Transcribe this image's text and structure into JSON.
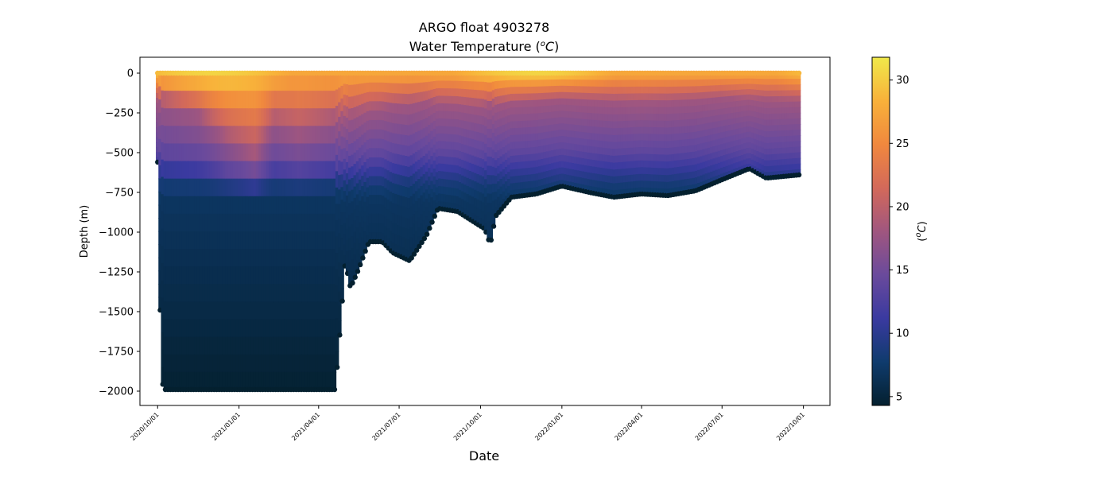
{
  "chart_data": {
    "type": "scatter",
    "title": "ARGO float 4903278",
    "subtitle_prefix": "Water Temperature (",
    "subtitle_unit_sup": "o",
    "subtitle_unit": "C",
    "subtitle_suffix": ")",
    "xlabel": "Date",
    "ylabel": "Depth (m)",
    "colorbar_label_prefix": "(",
    "colorbar_label_sup": "o",
    "colorbar_label_unit": "C",
    "colorbar_label_suffix": ")",
    "colormap": "thermal",
    "colormap_stops": [
      "#04202f",
      "#0f3b6d",
      "#3a3aa0",
      "#6a4a9c",
      "#a0567f",
      "#d3695a",
      "#f0883e",
      "#f8b13a",
      "#f0e94a"
    ],
    "clim": [
      4.3,
      31.8
    ],
    "colorbar_ticks": [
      5,
      10,
      15,
      20,
      25,
      30
    ],
    "xlim": [
      "2020-09-11",
      "2022-10-31"
    ],
    "ylim": [
      -2090,
      100
    ],
    "x_tick_labels": [
      "2020/10/01",
      "2021/01/01",
      "2021/04/01",
      "2021/07/01",
      "2021/10/01",
      "2022/01/01",
      "2022/04/01",
      "2022/07/01",
      "2022/10/01"
    ],
    "x_tick_dates": [
      "2020-10-01",
      "2021-01-01",
      "2021-04-01",
      "2021-07-01",
      "2021-10-01",
      "2022-01-01",
      "2022-04-01",
      "2022-07-01",
      "2022-10-01"
    ],
    "y_ticks": [
      0,
      -250,
      -500,
      -750,
      -1000,
      -1250,
      -1500,
      -1750,
      -2000
    ],
    "y_tick_labels": [
      "0",
      "−250",
      "−500",
      "−750",
      "−1000",
      "−1250",
      "−1500",
      "−1750",
      "−2000"
    ],
    "grid": false,
    "profile_start": "2020-10-01",
    "profile_end": "2022-09-26",
    "profile_interval_days": 2.9,
    "max_depth_anchors": [
      {
        "date": "2020-10-01",
        "depth": -560
      },
      {
        "date": "2020-10-02",
        "depth": -1500
      },
      {
        "date": "2020-10-04",
        "depth": -1490
      },
      {
        "date": "2020-10-07",
        "depth": -1990
      },
      {
        "date": "2021-04-20",
        "depth": -1990
      },
      {
        "date": "2021-04-26",
        "depth": -1570
      },
      {
        "date": "2021-05-01",
        "depth": -1190
      },
      {
        "date": "2021-05-07",
        "depth": -1350
      },
      {
        "date": "2021-05-15",
        "depth": -1250
      },
      {
        "date": "2021-05-28",
        "depth": -1060
      },
      {
        "date": "2021-06-12",
        "depth": -1060
      },
      {
        "date": "2021-06-24",
        "depth": -1130
      },
      {
        "date": "2021-07-13",
        "depth": -1180
      },
      {
        "date": "2021-08-01",
        "depth": -1020
      },
      {
        "date": "2021-08-14",
        "depth": -850
      },
      {
        "date": "2021-09-05",
        "depth": -870
      },
      {
        "date": "2021-10-06",
        "depth": -980
      },
      {
        "date": "2021-10-12",
        "depth": -1080
      },
      {
        "date": "2021-10-18",
        "depth": -900
      },
      {
        "date": "2021-11-05",
        "depth": -780
      },
      {
        "date": "2021-12-03",
        "depth": -760
      },
      {
        "date": "2022-01-01",
        "depth": -710
      },
      {
        "date": "2022-02-01",
        "depth": -750
      },
      {
        "date": "2022-03-01",
        "depth": -780
      },
      {
        "date": "2022-04-01",
        "depth": -760
      },
      {
        "date": "2022-05-01",
        "depth": -770
      },
      {
        "date": "2022-06-01",
        "depth": -740
      },
      {
        "date": "2022-07-01",
        "depth": -670
      },
      {
        "date": "2022-08-01",
        "depth": -600
      },
      {
        "date": "2022-08-20",
        "depth": -660
      },
      {
        "date": "2022-09-26",
        "depth": -640
      }
    ],
    "thermocline_depth_anchors": [
      {
        "date": "2020-10-01",
        "depth": -180
      },
      {
        "date": "2020-11-15",
        "depth": -260
      },
      {
        "date": "2020-12-20",
        "depth": -420
      },
      {
        "date": "2021-01-20",
        "depth": -520
      },
      {
        "date": "2021-02-10",
        "depth": -320
      },
      {
        "date": "2021-03-10",
        "depth": -380
      },
      {
        "date": "2021-04-20",
        "depth": -300
      },
      {
        "date": "2021-06-01",
        "depth": -230
      },
      {
        "date": "2021-08-01",
        "depth": -190
      },
      {
        "date": "2021-10-01",
        "depth": -210
      },
      {
        "date": "2022-01-01",
        "depth": -170
      },
      {
        "date": "2022-04-01",
        "depth": -190
      },
      {
        "date": "2022-07-01",
        "depth": -160
      },
      {
        "date": "2022-09-26",
        "depth": -180
      }
    ],
    "temperature_profile": {
      "surface": 27.5,
      "surface_peak": 30.5,
      "mid": 11,
      "deep": 5,
      "bottom": 4.5
    }
  }
}
